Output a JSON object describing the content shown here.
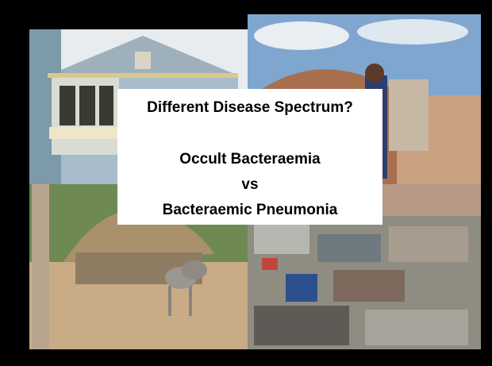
{
  "slide": {
    "title": "Different Disease Spectrum?",
    "lines": [
      "Occult Bacteraemia",
      "vs",
      "Bacteraemic Pneumonia"
    ]
  }
}
